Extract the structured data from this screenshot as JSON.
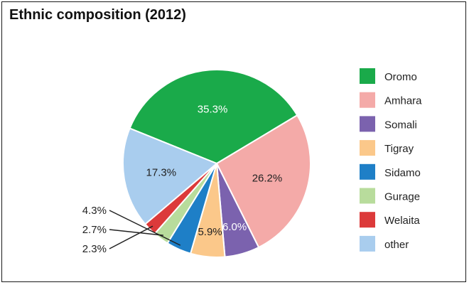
{
  "chart_data": {
    "type": "pie",
    "title": "Ethnic composition (2012)",
    "categories": [
      "Oromo",
      "Amhara",
      "Somali",
      "Tigray",
      "Sidamo",
      "Gurage",
      "Welaita",
      "other"
    ],
    "values": [
      35.3,
      26.2,
      6.0,
      5.9,
      4.3,
      2.7,
      2.3,
      17.3
    ],
    "value_labels": [
      "35.3%",
      "26.2%",
      "6.0%",
      "5.9%",
      "4.3%",
      "2.7%",
      "2.3%",
      "17.3%"
    ],
    "colors": [
      "#1aaa4a",
      "#f4aaa8",
      "#7b62ae",
      "#fbc88a",
      "#1e7fc7",
      "#b8dc9c",
      "#dc3a3a",
      "#a9cdee"
    ],
    "label_colors": [
      "#ffffff",
      "#222222",
      "#ffffff",
      "#222222",
      "#222222",
      "#222222",
      "#222222",
      "#222222"
    ],
    "legend_position": "right"
  }
}
